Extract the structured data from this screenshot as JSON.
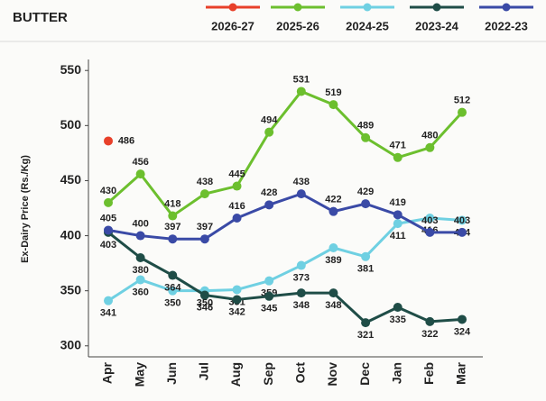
{
  "chart_data": {
    "type": "line",
    "title": "BUTTER",
    "y_label": "Ex-Dairy Price (Rs./Kg)",
    "categories": [
      "Apr",
      "May",
      "Jun",
      "Jul",
      "Aug",
      "Sep",
      "Oct",
      "Nov",
      "Dec",
      "Jan",
      "Feb",
      "Mar"
    ],
    "series": [
      {
        "name": "2026-27",
        "color": "#e8402a",
        "values": [
          486,
          null,
          null,
          null,
          null,
          null,
          null,
          null,
          null,
          null,
          null,
          null
        ]
      },
      {
        "name": "2025-26",
        "color": "#6cbf2e",
        "values": [
          430,
          456,
          418,
          438,
          445,
          494,
          531,
          519,
          489,
          471,
          480,
          512
        ]
      },
      {
        "name": "2024-25",
        "color": "#6fd0e2",
        "values": [
          341,
          360,
          350,
          350,
          351,
          359,
          373,
          389,
          381,
          411,
          416,
          414
        ]
      },
      {
        "name": "2023-24",
        "color": "#1f4d47",
        "values": [
          403,
          380,
          364,
          346,
          342,
          345,
          348,
          348,
          321,
          335,
          322,
          324
        ]
      },
      {
        "name": "2022-23",
        "color": "#3a4aa6",
        "values": [
          405,
          400,
          397,
          397,
          416,
          428,
          438,
          422,
          429,
          419,
          403,
          403
        ]
      }
    ],
    "ylim": [
      290,
      560
    ],
    "yticks": [
      300,
      350,
      400,
      450,
      500,
      550
    ]
  }
}
